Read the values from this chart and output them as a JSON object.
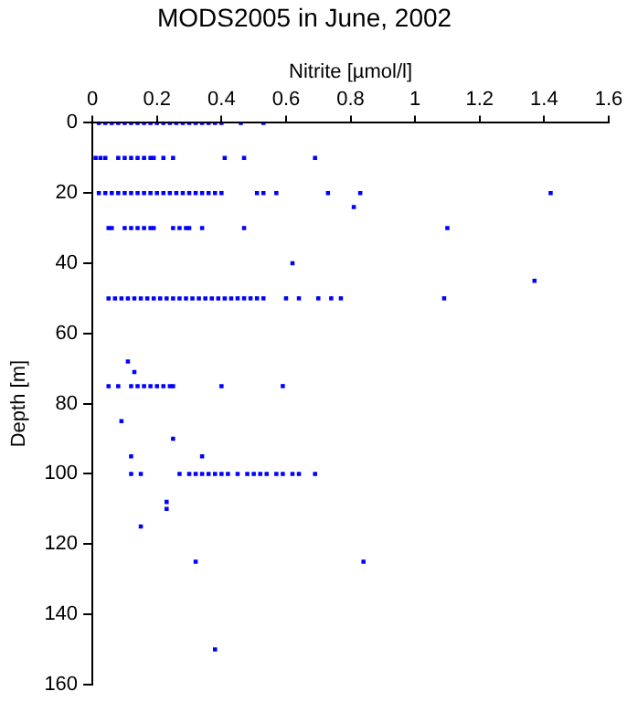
{
  "chart_data": {
    "type": "scatter",
    "title": "MODS2005 in June, 2002",
    "xlabel": "Nitrite [µmol/l]",
    "ylabel": "Depth [m]",
    "xlim": [
      0,
      1.6
    ],
    "xticks": [
      0,
      0.2,
      0.4,
      0.6,
      0.8,
      1,
      1.2,
      1.4,
      1.6
    ],
    "ylim": [
      160,
      0
    ],
    "yticks": [
      0,
      20,
      40,
      60,
      80,
      100,
      120,
      140,
      160
    ],
    "grid": false,
    "legend": false,
    "marker": "square",
    "series": [
      {
        "color": "#0000ff",
        "x": [
          0.02,
          0.04,
          0.06,
          0.08,
          0.1,
          0.12,
          0.14,
          0.16,
          0.18,
          0.2,
          0.22,
          0.24,
          0.26,
          0.28,
          0.3,
          0.32,
          0.34,
          0.36,
          0.38,
          0.4,
          0.46,
          0.53,
          0.01,
          0.025,
          0.04,
          0.08,
          0.1,
          0.12,
          0.14,
          0.16,
          0.18,
          0.19,
          0.22,
          0.25,
          0.41,
          0.47,
          0.69,
          0.02,
          0.04,
          0.06,
          0.08,
          0.1,
          0.12,
          0.14,
          0.16,
          0.18,
          0.2,
          0.22,
          0.24,
          0.26,
          0.28,
          0.3,
          0.32,
          0.34,
          0.36,
          0.38,
          0.4,
          0.51,
          0.53,
          0.57,
          0.73,
          0.83,
          1.42,
          0.81,
          0.05,
          0.06,
          0.1,
          0.12,
          0.14,
          0.16,
          0.18,
          0.19,
          0.25,
          0.27,
          0.29,
          0.3,
          0.34,
          0.47,
          1.1,
          0.62,
          1.37,
          0.05,
          0.07,
          0.09,
          0.11,
          0.13,
          0.15,
          0.17,
          0.19,
          0.21,
          0.23,
          0.25,
          0.27,
          0.29,
          0.31,
          0.33,
          0.35,
          0.37,
          0.39,
          0.41,
          0.43,
          0.45,
          0.47,
          0.49,
          0.51,
          0.53,
          0.6,
          0.64,
          0.7,
          0.74,
          0.77,
          1.09,
          0.11,
          0.13,
          0.05,
          0.08,
          0.12,
          0.14,
          0.16,
          0.18,
          0.2,
          0.22,
          0.24,
          0.25,
          0.4,
          0.59,
          0.09,
          0.25,
          0.12,
          0.34,
          0.12,
          0.15,
          0.27,
          0.3,
          0.32,
          0.34,
          0.36,
          0.38,
          0.4,
          0.42,
          0.45,
          0.48,
          0.5,
          0.52,
          0.54,
          0.57,
          0.59,
          0.62,
          0.64,
          0.69,
          0.23,
          0.23,
          0.15,
          0.32,
          0.84,
          0.38
        ],
        "values": [
          0,
          0,
          0,
          0,
          0,
          0,
          0,
          0,
          0,
          0,
          0,
          0,
          0,
          0,
          0,
          0,
          0,
          0,
          0,
          0,
          0,
          0,
          10,
          10,
          10,
          10,
          10,
          10,
          10,
          10,
          10,
          10,
          10,
          10,
          10,
          10,
          10,
          20,
          20,
          20,
          20,
          20,
          20,
          20,
          20,
          20,
          20,
          20,
          20,
          20,
          20,
          20,
          20,
          20,
          20,
          20,
          20,
          20,
          20,
          20,
          20,
          20,
          20,
          24,
          30,
          30,
          30,
          30,
          30,
          30,
          30,
          30,
          30,
          30,
          30,
          30,
          30,
          30,
          30,
          40,
          45,
          50,
          50,
          50,
          50,
          50,
          50,
          50,
          50,
          50,
          50,
          50,
          50,
          50,
          50,
          50,
          50,
          50,
          50,
          50,
          50,
          50,
          50,
          50,
          50,
          50,
          50,
          50,
          50,
          50,
          50,
          50,
          68,
          71,
          75,
          75,
          75,
          75,
          75,
          75,
          75,
          75,
          75,
          75,
          75,
          75,
          85,
          90,
          95,
          95,
          100,
          100,
          100,
          100,
          100,
          100,
          100,
          100,
          100,
          100,
          100,
          100,
          100,
          100,
          100,
          100,
          100,
          100,
          100,
          100,
          108,
          110,
          115,
          125,
          125,
          150
        ]
      }
    ]
  }
}
